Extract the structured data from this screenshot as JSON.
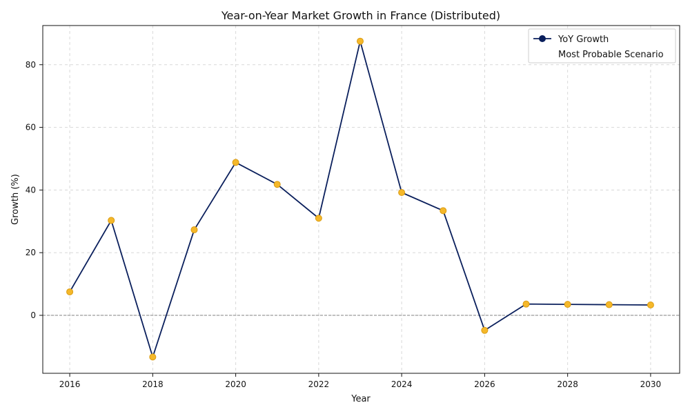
{
  "chart_data": {
    "type": "line",
    "title": "Year-on-Year Market Growth in France (Distributed)",
    "xlabel": "Year",
    "ylabel": "Growth (%)",
    "xlim": [
      2015.35,
      2030.7
    ],
    "ylim": [
      -18.5,
      92.5
    ],
    "xticks": [
      2016,
      2018,
      2020,
      2022,
      2024,
      2026,
      2028,
      2030
    ],
    "yticks": [
      0,
      20,
      40,
      60,
      80
    ],
    "grid": true,
    "reference_line": 0,
    "legend_position": "top-right",
    "legend": [
      {
        "label": "YoY Growth"
      },
      {
        "label": "Most Probable Scenario"
      }
    ],
    "series": [
      {
        "name": "YoY Growth",
        "x": [
          2016,
          2017,
          2018,
          2019,
          2020,
          2021,
          2022,
          2023,
          2024,
          2025,
          2026,
          2027,
          2028,
          2029,
          2030
        ],
        "y": [
          7.5,
          30.3,
          -13.3,
          27.3,
          48.8,
          41.8,
          31.0,
          87.5,
          39.2,
          33.4,
          -4.8,
          3.6,
          3.5,
          3.4,
          3.3
        ]
      }
    ]
  },
  "colors": {
    "line": "#0a1f5c",
    "marker_fill": "#f5b82a",
    "marker_edge": "#d99b12",
    "grid": "#d8d8d8",
    "zero_line": "#808080",
    "axis": "#111111"
  }
}
